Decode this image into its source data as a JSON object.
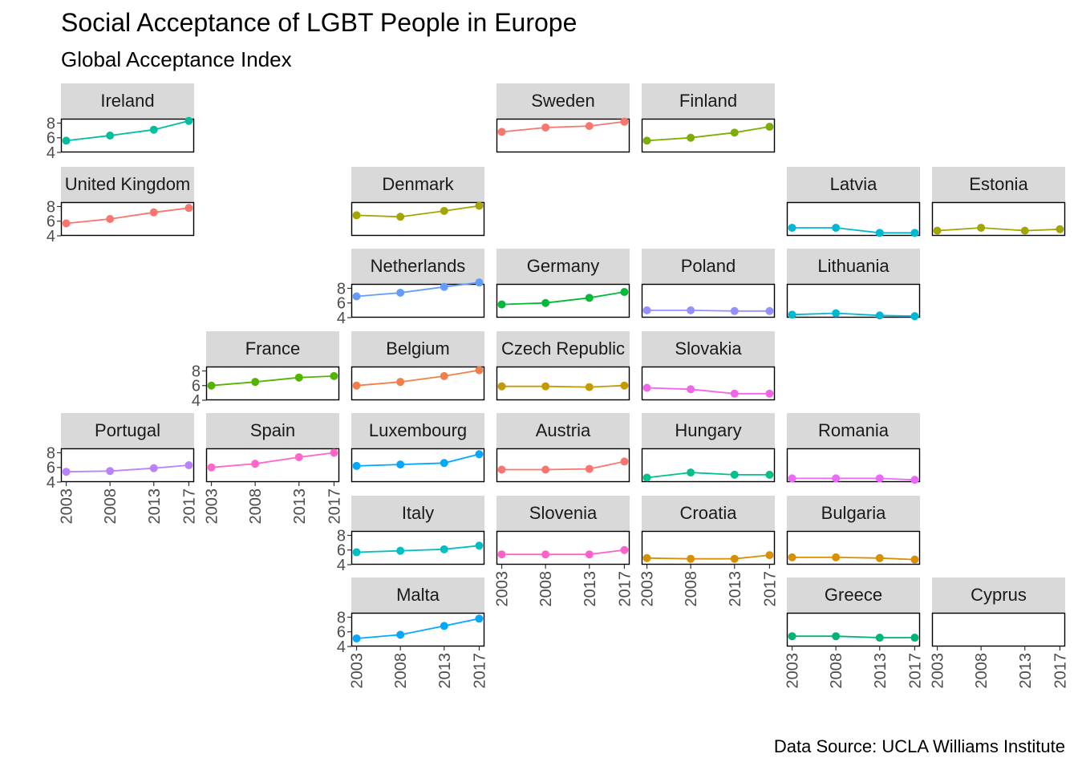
{
  "title": "Social Acceptance of LGBT People in Europe",
  "subtitle": "Global Acceptance Index",
  "caption": "Data Source: UCLA Williams Institute",
  "chart_data": {
    "type": "line",
    "facet_layout": "geographic grid (geofacet)",
    "x_ticks": [
      2003,
      2008,
      2013,
      2017
    ],
    "y_ticks": [
      4,
      6,
      8
    ],
    "ylim": [
      4,
      8.6
    ],
    "xlim": [
      2002.4,
      2017.6
    ],
    "grid": false,
    "legend": "none",
    "panels": [
      {
        "country": "Ireland",
        "color": "#00BFA0",
        "x": [
          2003,
          2008,
          2013,
          2017
        ],
        "y": [
          5.6,
          6.3,
          7.1,
          8.3
        ]
      },
      {
        "country": "Sweden",
        "color": "#F8766D",
        "x": [
          2003,
          2008,
          2013,
          2017
        ],
        "y": [
          6.8,
          7.4,
          7.6,
          8.2
        ]
      },
      {
        "country": "Finland",
        "color": "#7CAE00",
        "x": [
          2003,
          2008,
          2013,
          2017
        ],
        "y": [
          5.6,
          6.0,
          6.7,
          7.5
        ]
      },
      {
        "country": "United Kingdom",
        "color": "#F8766D",
        "x": [
          2003,
          2008,
          2013,
          2017
        ],
        "y": [
          5.7,
          6.3,
          7.2,
          7.8
        ]
      },
      {
        "country": "Denmark",
        "color": "#A3A500",
        "x": [
          2003,
          2008,
          2013,
          2017
        ],
        "y": [
          6.8,
          6.6,
          7.4,
          8.1
        ]
      },
      {
        "country": "Latvia",
        "color": "#00B8D0",
        "x": [
          2003,
          2008,
          2013,
          2017
        ],
        "y": [
          5.1,
          5.1,
          4.4,
          4.4
        ]
      },
      {
        "country": "Estonia",
        "color": "#A3A500",
        "x": [
          2003,
          2008,
          2013,
          2017
        ],
        "y": [
          4.7,
          5.1,
          4.7,
          4.9
        ]
      },
      {
        "country": "Netherlands",
        "color": "#619CFF",
        "x": [
          2003,
          2008,
          2013,
          2017
        ],
        "y": [
          6.9,
          7.4,
          8.2,
          8.8
        ]
      },
      {
        "country": "Germany",
        "color": "#00BA38",
        "x": [
          2003,
          2008,
          2013,
          2017
        ],
        "y": [
          5.8,
          6.0,
          6.7,
          7.5
        ]
      },
      {
        "country": "Poland",
        "color": "#9590FF",
        "x": [
          2003,
          2008,
          2013,
          2017
        ],
        "y": [
          5.0,
          5.0,
          4.9,
          4.9
        ]
      },
      {
        "country": "Lithuania",
        "color": "#00B8D0",
        "x": [
          2003,
          2008,
          2013,
          2017
        ],
        "y": [
          4.4,
          4.6,
          4.3,
          4.2
        ]
      },
      {
        "country": "France",
        "color": "#53B400",
        "x": [
          2003,
          2008,
          2013,
          2017
        ],
        "y": [
          6.0,
          6.5,
          7.1,
          7.3
        ]
      },
      {
        "country": "Belgium",
        "color": "#F07F4A",
        "x": [
          2003,
          2008,
          2013,
          2017
        ],
        "y": [
          6.0,
          6.5,
          7.3,
          8.1
        ]
      },
      {
        "country": "Czech Republic",
        "color": "#C49A00",
        "x": [
          2003,
          2008,
          2013,
          2017
        ],
        "y": [
          5.9,
          5.9,
          5.8,
          6.0
        ]
      },
      {
        "country": "Slovakia",
        "color": "#F166E8",
        "x": [
          2003,
          2008,
          2013,
          2017
        ],
        "y": [
          5.7,
          5.5,
          4.9,
          4.9
        ]
      },
      {
        "country": "Portugal",
        "color": "#B983FF",
        "x": [
          2003,
          2008,
          2013,
          2017
        ],
        "y": [
          5.4,
          5.5,
          5.9,
          6.3
        ]
      },
      {
        "country": "Spain",
        "color": "#FF67C8",
        "x": [
          2003,
          2008,
          2013,
          2017
        ],
        "y": [
          6.0,
          6.5,
          7.4,
          8.0
        ]
      },
      {
        "country": "Luxembourg",
        "color": "#00A9FF",
        "x": [
          2003,
          2008,
          2013,
          2017
        ],
        "y": [
          6.2,
          6.4,
          6.6,
          7.8
        ]
      },
      {
        "country": "Austria",
        "color": "#F8766D",
        "x": [
          2003,
          2008,
          2013,
          2017
        ],
        "y": [
          5.7,
          5.7,
          5.8,
          6.8
        ]
      },
      {
        "country": "Hungary",
        "color": "#00C08B",
        "x": [
          2003,
          2008,
          2013,
          2017
        ],
        "y": [
          4.6,
          5.3,
          5.0,
          5.0
        ]
      },
      {
        "country": "Romania",
        "color": "#E76BF3",
        "x": [
          2003,
          2008,
          2013,
          2017
        ],
        "y": [
          4.5,
          4.5,
          4.5,
          4.3
        ]
      },
      {
        "country": "Italy",
        "color": "#00BFC4",
        "x": [
          2003,
          2008,
          2013,
          2017
        ],
        "y": [
          5.7,
          5.9,
          6.1,
          6.6
        ]
      },
      {
        "country": "Slovenia",
        "color": "#FF61CC",
        "x": [
          2003,
          2008,
          2013,
          2017
        ],
        "y": [
          5.4,
          5.4,
          5.4,
          6.0
        ]
      },
      {
        "country": "Croatia",
        "color": "#D89000",
        "x": [
          2003,
          2008,
          2013,
          2017
        ],
        "y": [
          4.9,
          4.8,
          4.8,
          5.3
        ]
      },
      {
        "country": "Bulgaria",
        "color": "#D89000",
        "x": [
          2003,
          2008,
          2013,
          2017
        ],
        "y": [
          5.0,
          5.0,
          4.9,
          4.7
        ]
      },
      {
        "country": "Malta",
        "color": "#00A9FF",
        "x": [
          2003,
          2008,
          2013,
          2017
        ],
        "y": [
          5.1,
          5.6,
          6.8,
          7.8
        ]
      },
      {
        "country": "Greece",
        "color": "#00B377",
        "x": [
          2003,
          2008,
          2013,
          2017
        ],
        "y": [
          5.4,
          5.4,
          5.2,
          5.2
        ]
      },
      {
        "country": "Cyprus",
        "color": "#999999",
        "x": [],
        "y": []
      }
    ]
  }
}
